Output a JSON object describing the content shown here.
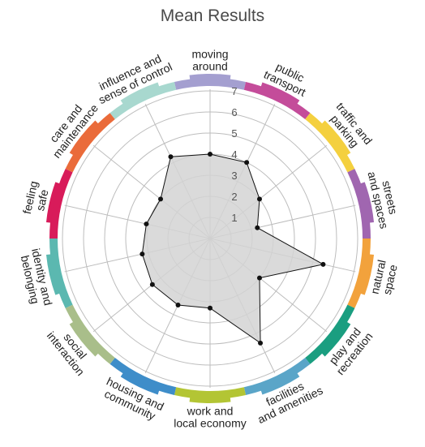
{
  "chart_data": {
    "type": "radar",
    "title": "Mean Results",
    "r_range": [
      0,
      7
    ],
    "r_ticks": [
      "1",
      "2",
      "3",
      "4",
      "5",
      "6",
      "7"
    ],
    "grid": true,
    "categories": [
      {
        "lines": [
          "moving",
          "around"
        ],
        "color": "#a49fd0"
      },
      {
        "lines": [
          "public",
          "transport"
        ],
        "color": "#c44c9a"
      },
      {
        "lines": [
          "traffic and",
          "parking"
        ],
        "color": "#f4d03f"
      },
      {
        "lines": [
          "streets",
          "and spaces"
        ],
        "color": "#a066b0"
      },
      {
        "lines": [
          "natural",
          "space"
        ],
        "color": "#f2a23c"
      },
      {
        "lines": [
          "play and",
          "recreation"
        ],
        "color": "#1a9e80"
      },
      {
        "lines": [
          "facilities",
          "and amenities"
        ],
        "color": "#5aa5c8"
      },
      {
        "lines": [
          "work and",
          "local economy"
        ],
        "color": "#b3c534"
      },
      {
        "lines": [
          "housing and",
          "community"
        ],
        "color": "#3e8dc9"
      },
      {
        "lines": [
          "social",
          "interaction"
        ],
        "color": "#a9be8a"
      },
      {
        "lines": [
          "identity and",
          "belonging"
        ],
        "color": "#5bb8b0"
      },
      {
        "lines": [
          "feeling",
          "safe"
        ],
        "color": "#d81b5a"
      },
      {
        "lines": [
          "care and",
          "maintenance"
        ],
        "color": "#ea6b3a"
      },
      {
        "lines": [
          "influence and",
          "sense of control"
        ],
        "color": "#a8d8cf"
      }
    ],
    "series": [
      {
        "values": [
          4,
          4,
          3,
          2.3,
          5.5,
          3,
          5.5,
          3.3,
          3.5,
          3.5,
          3.3,
          3.1,
          3,
          4.3
        ],
        "fill": "#d3d3d3",
        "stroke": "#111111"
      }
    ]
  }
}
